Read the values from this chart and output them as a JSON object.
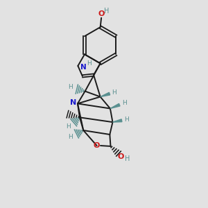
{
  "background_color": "#e2e2e2",
  "C": "#1a1a1a",
  "N": "#1a1acc",
  "O": "#cc1a1a",
  "H": "#5a9090",
  "figsize": [
    3.0,
    3.0
  ],
  "dpi": 100,
  "xlim": [
    0,
    10
  ],
  "ylim": [
    0,
    10
  ]
}
